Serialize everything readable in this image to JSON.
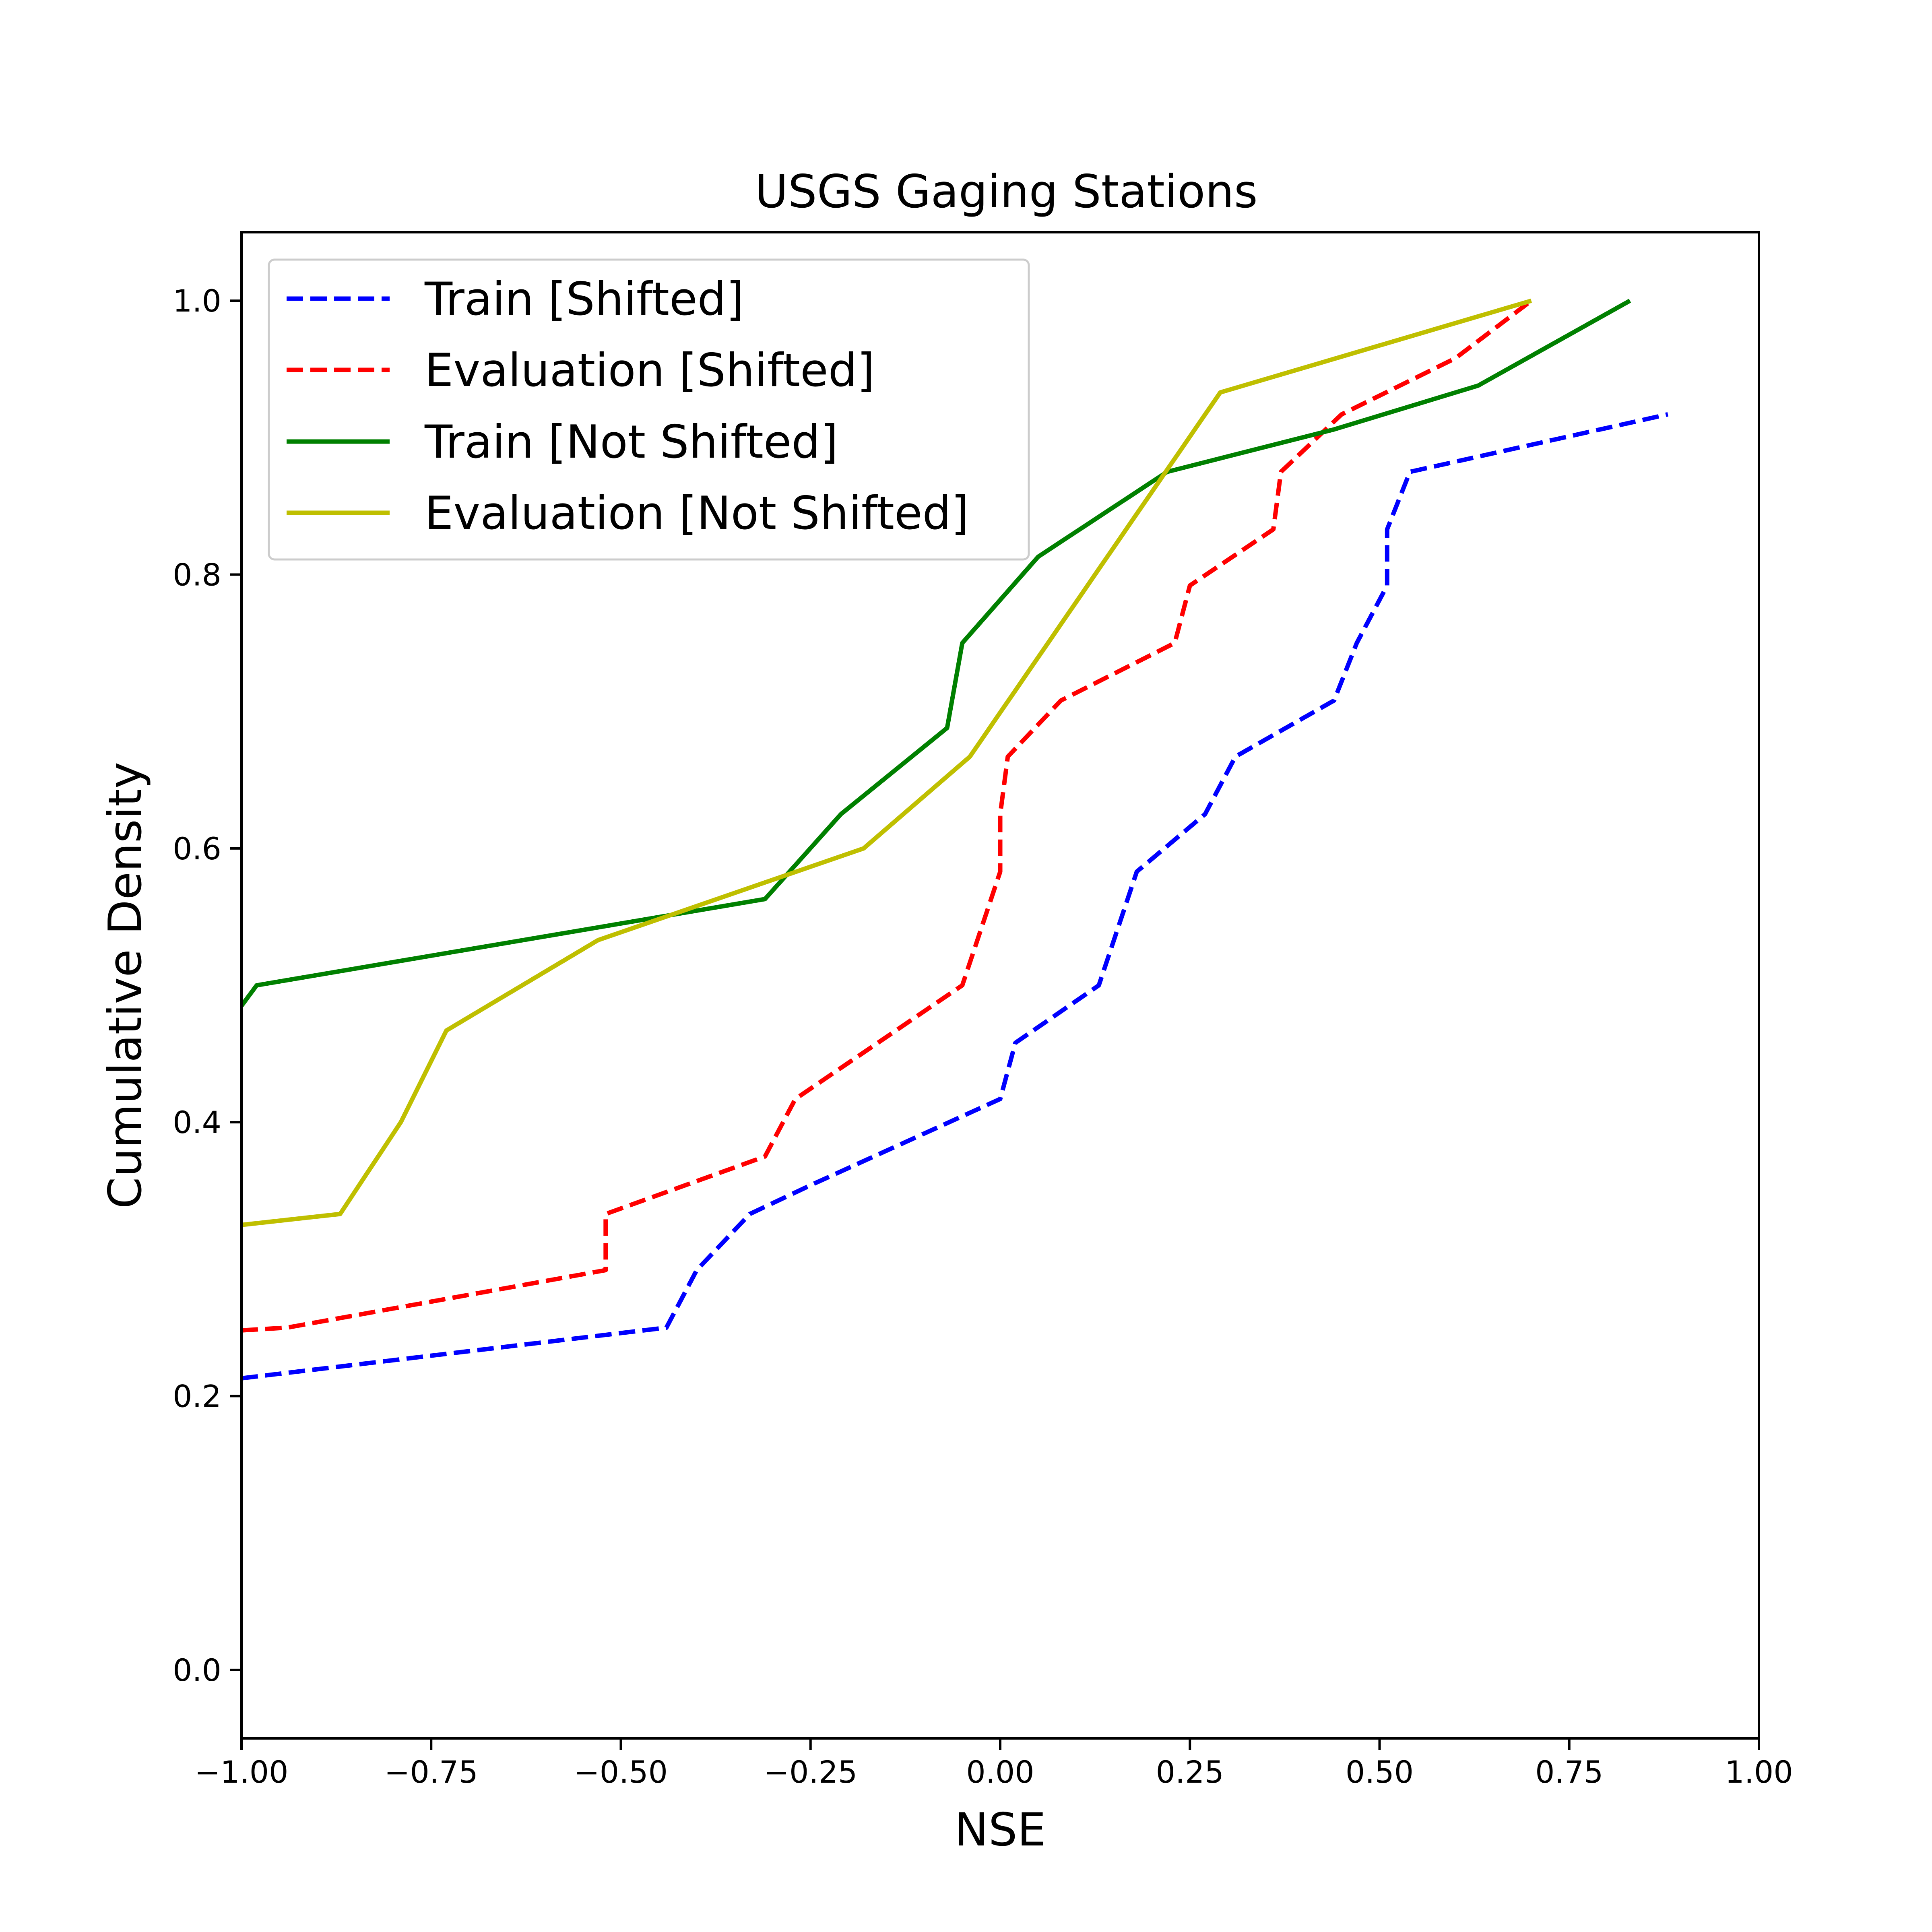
{
  "chart_data": {
    "type": "line",
    "title": "USGS Gaging Stations",
    "xlabel": "NSE",
    "ylabel": "Cumulative Density",
    "xlim": [
      -1.0,
      1.0
    ],
    "ylim": [
      -0.05,
      1.05
    ],
    "xticks": [
      -1.0,
      -0.75,
      -0.5,
      -0.25,
      0.0,
      0.25,
      0.5,
      0.75,
      1.0
    ],
    "xtick_labels": [
      "−1.00",
      "−0.75",
      "−0.50",
      "−0.25",
      "0.00",
      "0.25",
      "0.50",
      "0.75",
      "1.00"
    ],
    "yticks": [
      0.0,
      0.2,
      0.4,
      0.6,
      0.8,
      1.0
    ],
    "ytick_labels": [
      "0.0",
      "0.2",
      "0.4",
      "0.6",
      "0.8",
      "1.0"
    ],
    "grid": false,
    "legend_position": "upper-left",
    "series": [
      {
        "name": "Train [Shifted]",
        "color": "#0000ff",
        "style": "dashed",
        "points": [
          [
            -1.0,
            0.213
          ],
          [
            -0.44,
            0.25
          ],
          [
            -0.4,
            0.292
          ],
          [
            -0.33,
            0.333
          ],
          [
            -0.25,
            0.354
          ],
          [
            0.0,
            0.417
          ],
          [
            0.02,
            0.458
          ],
          [
            0.13,
            0.5
          ],
          [
            0.18,
            0.583
          ],
          [
            0.27,
            0.625
          ],
          [
            0.31,
            0.667
          ],
          [
            0.44,
            0.708
          ],
          [
            0.47,
            0.75
          ],
          [
            0.51,
            0.792
          ],
          [
            0.51,
            0.833
          ],
          [
            0.54,
            0.875
          ],
          [
            0.88,
            0.917
          ]
        ]
      },
      {
        "name": "Evaluation [Shifted]",
        "color": "#ff0000",
        "style": "dashed",
        "points": [
          [
            -1.0,
            0.248
          ],
          [
            -0.94,
            0.25
          ],
          [
            -0.52,
            0.292
          ],
          [
            -0.52,
            0.333
          ],
          [
            -0.31,
            0.375
          ],
          [
            -0.27,
            0.417
          ],
          [
            -0.05,
            0.5
          ],
          [
            0.0,
            0.583
          ],
          [
            0.0,
            0.625
          ],
          [
            0.01,
            0.667
          ],
          [
            0.08,
            0.708
          ],
          [
            0.23,
            0.75
          ],
          [
            0.25,
            0.792
          ],
          [
            0.36,
            0.833
          ],
          [
            0.37,
            0.875
          ],
          [
            0.45,
            0.917
          ],
          [
            0.6,
            0.958
          ],
          [
            0.7,
            1.0
          ]
        ]
      },
      {
        "name": "Train [Not Shifted]",
        "color": "#008000",
        "style": "solid",
        "points": [
          [
            -1.0,
            0.485
          ],
          [
            -0.98,
            0.5
          ],
          [
            -0.31,
            0.563
          ],
          [
            -0.21,
            0.625
          ],
          [
            -0.07,
            0.688
          ],
          [
            -0.05,
            0.75
          ],
          [
            0.05,
            0.813
          ],
          [
            0.22,
            0.875
          ],
          [
            0.44,
            0.906
          ],
          [
            0.63,
            0.938
          ],
          [
            0.83,
            1.0
          ]
        ]
      },
      {
        "name": "Evaluation [Not Shifted]",
        "color": "#bfbf00",
        "style": "solid",
        "points": [
          [
            -1.0,
            0.325
          ],
          [
            -0.87,
            0.333
          ],
          [
            -0.79,
            0.4
          ],
          [
            -0.73,
            0.467
          ],
          [
            -0.53,
            0.533
          ],
          [
            -0.18,
            0.6
          ],
          [
            -0.04,
            0.667
          ],
          [
            0.29,
            0.933
          ],
          [
            0.7,
            1.0
          ]
        ]
      }
    ]
  }
}
